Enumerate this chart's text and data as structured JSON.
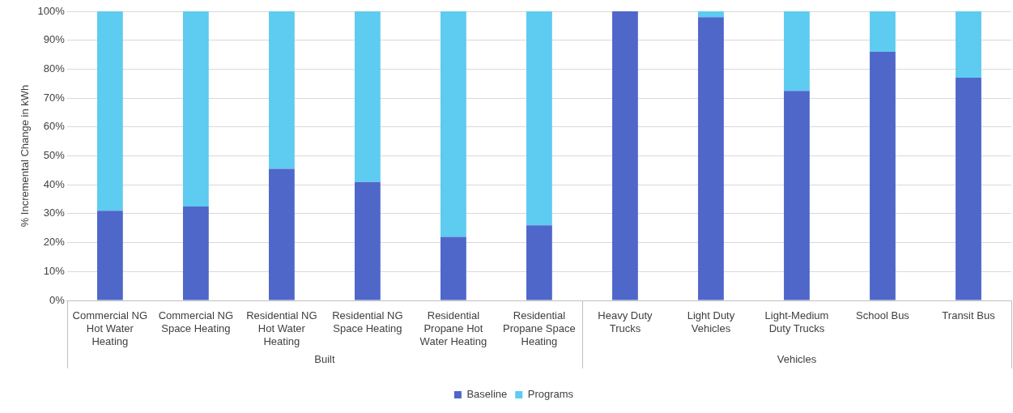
{
  "chart_data": {
    "type": "bar",
    "stacked": true,
    "ylabel": "% Incremental Change in kWh",
    "categories": [
      "Commercial NG Hot Water Heating",
      "Commercial NG Space Heating",
      "Residential NG Hot Water Heating",
      "Residential NG Space Heating",
      "Residential Propane Hot Water Heating",
      "Residential Propane Space Heating",
      "Heavy Duty Trucks",
      "Light Duty Vehicles",
      "Light-Medium Duty Trucks",
      "School Bus",
      "Transit Bus"
    ],
    "series": [
      {
        "name": "Baseline",
        "color": "#4f67c9",
        "values": [
          31,
          32.5,
          45.5,
          41,
          22,
          26,
          100,
          98,
          72.5,
          86,
          77
        ]
      },
      {
        "name": "Programs",
        "color": "#5ecbf0",
        "values": [
          69,
          67.5,
          54.5,
          59,
          78,
          74,
          0,
          2,
          27.5,
          14,
          23
        ]
      }
    ],
    "ylim": [
      0,
      100
    ],
    "yticks": [
      {
        "value": 0,
        "label": "0%"
      },
      {
        "value": 10,
        "label": "10%"
      },
      {
        "value": 20,
        "label": "20%"
      },
      {
        "value": 30,
        "label": "30%"
      },
      {
        "value": 40,
        "label": "40%"
      },
      {
        "value": 50,
        "label": "50%"
      },
      {
        "value": 60,
        "label": "60%"
      },
      {
        "value": 70,
        "label": "70%"
      },
      {
        "value": 80,
        "label": "80%"
      },
      {
        "value": 90,
        "label": "90%"
      },
      {
        "value": 100,
        "label": "100%"
      }
    ],
    "annotations": [
      "Built",
      "Vehicles"
    ],
    "grid": "y",
    "legend": "bottom"
  }
}
